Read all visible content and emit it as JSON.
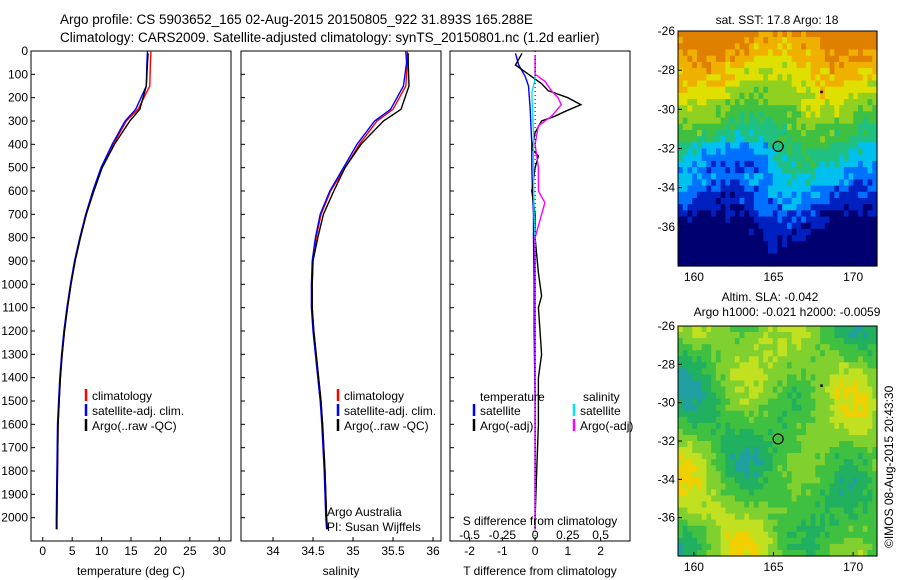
{
  "header": {
    "line1": "Argo profile: CS 5903652_165 02-Aug-2015 20150805_922 31.893S 165.288E",
    "line2": "Climatology: CARS2009. Satellite-adjusted climatology: synTS_20150801.nc (1.2d earlier)"
  },
  "footer_stamp": "©IMOS 08-Aug-2015 20:43:30",
  "colors": {
    "red": "#ff0000",
    "blue": "#0000ff",
    "black": "#000000",
    "cyan": "#00e5ee",
    "magenta": "#ff00ff"
  },
  "chart_data": [
    {
      "type": "line",
      "id": "temperature",
      "xlabel": "temperature (deg C)",
      "ylabel": "",
      "xlim": [
        -2,
        32
      ],
      "ylim": [
        2100,
        0
      ],
      "xticks": [
        0,
        5,
        10,
        15,
        20,
        25,
        30
      ],
      "yticks": [
        0,
        100,
        200,
        300,
        400,
        500,
        600,
        700,
        800,
        900,
        1000,
        1100,
        1200,
        1300,
        1400,
        1500,
        1600,
        1700,
        1800,
        1900,
        2000
      ],
      "legend": [
        "climatology",
        "satellite-adj. clim.",
        "Argo(..raw -QC)"
      ],
      "legend_position": "lower-center",
      "series": [
        {
          "name": "climatology",
          "color": "#ff0000",
          "x": [
            18.4,
            18.3,
            18.2,
            16.2,
            14.2,
            12.0,
            10.0,
            8.6,
            7.4,
            6.4,
            5.5,
            4.8,
            4.2,
            3.7,
            3.3,
            3.0,
            2.8,
            2.6,
            2.5,
            2.4,
            2.4
          ],
          "y": [
            0,
            50,
            150,
            250,
            300,
            400,
            500,
            600,
            700,
            800,
            900,
            1000,
            1100,
            1200,
            1300,
            1400,
            1500,
            1600,
            1800,
            2000,
            2050
          ]
        },
        {
          "name": "satellite-adj. clim.",
          "color": "#0000ff",
          "x": [
            17.8,
            17.7,
            17.6,
            15.8,
            14.0,
            11.8,
            9.9,
            8.5,
            7.3,
            6.3,
            5.4,
            4.7,
            4.1,
            3.6,
            3.2,
            2.9,
            2.7,
            2.5,
            2.4,
            2.3,
            2.3
          ],
          "y": [
            0,
            50,
            150,
            250,
            300,
            400,
            500,
            600,
            700,
            800,
            900,
            1000,
            1100,
            1200,
            1300,
            1400,
            1500,
            1600,
            1800,
            2000,
            2050
          ]
        },
        {
          "name": "Argo(..raw -QC)",
          "color": "#000000",
          "x": [
            17.9,
            17.8,
            17.6,
            16.5,
            14.8,
            12.2,
            10.1,
            8.7,
            7.4,
            6.4,
            5.5,
            4.8,
            4.2,
            3.7,
            3.3,
            3.0,
            2.8,
            2.6,
            2.5,
            2.4,
            2.4
          ],
          "y": [
            10,
            50,
            150,
            250,
            300,
            400,
            500,
            600,
            700,
            800,
            900,
            1000,
            1100,
            1200,
            1300,
            1400,
            1500,
            1600,
            1800,
            2000,
            2050
          ]
        }
      ]
    },
    {
      "type": "line",
      "id": "salinity",
      "xlabel": "salinity",
      "ylabel": "",
      "xlim": [
        33.6,
        36.1
      ],
      "ylim": [
        2100,
        0
      ],
      "xticks": [
        34,
        34.5,
        35,
        35.5,
        36
      ],
      "legend": [
        "climatology",
        "satellite-adj. clim.",
        "Argo(..raw -QC)"
      ],
      "legend_position": "lower-center",
      "annotation": [
        "Argo Australia",
        "PI: Susan Wijffels"
      ],
      "series": [
        {
          "name": "climatology",
          "color": "#ff0000",
          "x": [
            35.68,
            35.68,
            35.66,
            35.5,
            35.3,
            35.08,
            34.9,
            34.72,
            34.6,
            34.54,
            34.5,
            34.49,
            34.49,
            34.51,
            34.54,
            34.57,
            34.6,
            34.62,
            34.65,
            34.67,
            34.68
          ],
          "y": [
            0,
            50,
            150,
            250,
            300,
            400,
            500,
            600,
            700,
            800,
            900,
            1000,
            1100,
            1200,
            1300,
            1400,
            1500,
            1600,
            1800,
            2000,
            2050
          ]
        },
        {
          "name": "satellite-adj. clim.",
          "color": "#0000ff",
          "x": [
            35.66,
            35.67,
            35.63,
            35.47,
            35.27,
            35.05,
            34.88,
            34.71,
            34.59,
            34.53,
            34.49,
            34.48,
            34.48,
            34.5,
            34.53,
            34.56,
            34.59,
            34.61,
            34.64,
            34.66,
            34.67
          ],
          "y": [
            0,
            50,
            150,
            250,
            300,
            400,
            500,
            600,
            700,
            800,
            900,
            1000,
            1100,
            1200,
            1300,
            1400,
            1500,
            1600,
            1800,
            2000,
            2050
          ]
        },
        {
          "name": "Argo(..raw -QC)",
          "color": "#000000",
          "x": [
            35.69,
            35.69,
            35.7,
            35.6,
            35.38,
            35.1,
            34.9,
            34.76,
            34.63,
            34.56,
            34.5,
            34.49,
            34.49,
            34.51,
            34.54,
            34.57,
            34.6,
            34.62,
            34.65,
            34.67,
            34.68
          ],
          "y": [
            10,
            50,
            150,
            250,
            300,
            400,
            500,
            600,
            700,
            800,
            900,
            1000,
            1100,
            1200,
            1300,
            1400,
            1500,
            1600,
            1800,
            2000,
            2050
          ]
        }
      ]
    },
    {
      "type": "line",
      "id": "differences",
      "xlabel": "T difference from climatology",
      "xlabel_top": "S difference from climatology",
      "xlim": [
        -2.6,
        2.9
      ],
      "ylim": [
        2100,
        0
      ],
      "xticks": [
        -2,
        -1,
        0,
        1,
        2
      ],
      "xticks_s": [
        -0.5,
        -0.25,
        0,
        0.25,
        0.5
      ],
      "legend_temperature_title": "temperature",
      "legend_salinity_title": "salinity",
      "legend": [
        "satellite",
        "Argo(-adj)",
        "satellite",
        "Argo(-adj)"
      ],
      "series": [
        {
          "name": "satellite",
          "group": "temperature",
          "color": "#0000ff",
          "x": [
            -0.6,
            -0.5,
            -0.3,
            -0.2,
            -0.15,
            -0.1,
            -0.1,
            -0.08,
            -0.05,
            -0.05,
            -0.03,
            -0.03,
            0,
            0
          ],
          "y": [
            10,
            60,
            110,
            150,
            250,
            400,
            500,
            600,
            700,
            800,
            1000,
            1200,
            1500,
            2050
          ]
        },
        {
          "name": "Argo(-adj)",
          "group": "temperature",
          "color": "#000000",
          "x": [
            -0.4,
            -0.6,
            -0.2,
            0.2,
            0.4,
            1.0,
            1.4,
            0.9,
            0.6,
            0.2,
            0.0,
            -0.1,
            0.1,
            0.0,
            -0.1,
            0.0,
            0.0,
            0.1,
            0.2,
            0.1,
            0.2,
            0.1,
            0.1,
            0.05,
            0.0,
            0.0
          ],
          "y": [
            10,
            60,
            100,
            140,
            170,
            200,
            230,
            260,
            280,
            300,
            350,
            420,
            450,
            500,
            600,
            700,
            800,
            950,
            1050,
            1100,
            1300,
            1400,
            1600,
            1800,
            2000,
            2050
          ]
        },
        {
          "name": "satellite",
          "group": "salinity",
          "color": "#00e5ee",
          "x": [
            0.0,
            0.0,
            -0.1,
            -0.08,
            -0.05,
            -0.05,
            -0.05,
            -0.03,
            0.0,
            0.0,
            0.0,
            0.0
          ],
          "y": [
            20,
            120,
            180,
            250,
            350,
            450,
            550,
            700,
            800,
            1000,
            1500,
            2050
          ]
        },
        {
          "name": "Argo(-adj)",
          "group": "salinity",
          "color": "#ff00ff",
          "x": [
            0.0,
            0.0,
            0.3,
            0.5,
            0.7,
            0.8,
            0.5,
            0.1,
            0.0,
            0.1,
            0.1,
            0.3,
            0.2,
            0.0,
            0.0,
            0.0
          ],
          "y": [
            20,
            100,
            130,
            170,
            200,
            230,
            280,
            320,
            400,
            500,
            600,
            650,
            700,
            800,
            1000,
            2050
          ]
        }
      ]
    },
    {
      "type": "heatmap",
      "id": "sst-map",
      "title": "sat. SST: 17.8  Argo: 18",
      "xlim": [
        159,
        171.5
      ],
      "ylim": [
        -38,
        -26
      ],
      "xticks": [
        160,
        165,
        170
      ],
      "yticks": [
        -26,
        -28,
        -30,
        -32,
        -34,
        -36
      ],
      "float_lon": 165.288,
      "float_lat": -31.893,
      "marker_lon": 168,
      "marker_lat": -29.1,
      "colorscale": [
        "#000070",
        "#0020c0",
        "#0070ff",
        "#00c0f0",
        "#20c080",
        "#40c040",
        "#90d020",
        "#e0e000",
        "#f0b000",
        "#e08000"
      ]
    },
    {
      "type": "heatmap",
      "id": "sla-map",
      "title": "Altim. SLA: -0.042",
      "subtitle": "Argo h1000: -0.021  h2000: -0.0059",
      "xlim": [
        159,
        171.5
      ],
      "ylim": [
        -38,
        -26
      ],
      "xticks": [
        160,
        165,
        170
      ],
      "yticks": [
        -26,
        -28,
        -30,
        -32,
        -34,
        -36
      ],
      "float_lon": 165.288,
      "float_lat": -31.893,
      "marker_lon": 168,
      "marker_lat": -29.1,
      "colorscale": [
        "#20a0a0",
        "#20b060",
        "#40c040",
        "#80d030",
        "#c0e020",
        "#f0d000",
        "#f0a020"
      ]
    }
  ]
}
